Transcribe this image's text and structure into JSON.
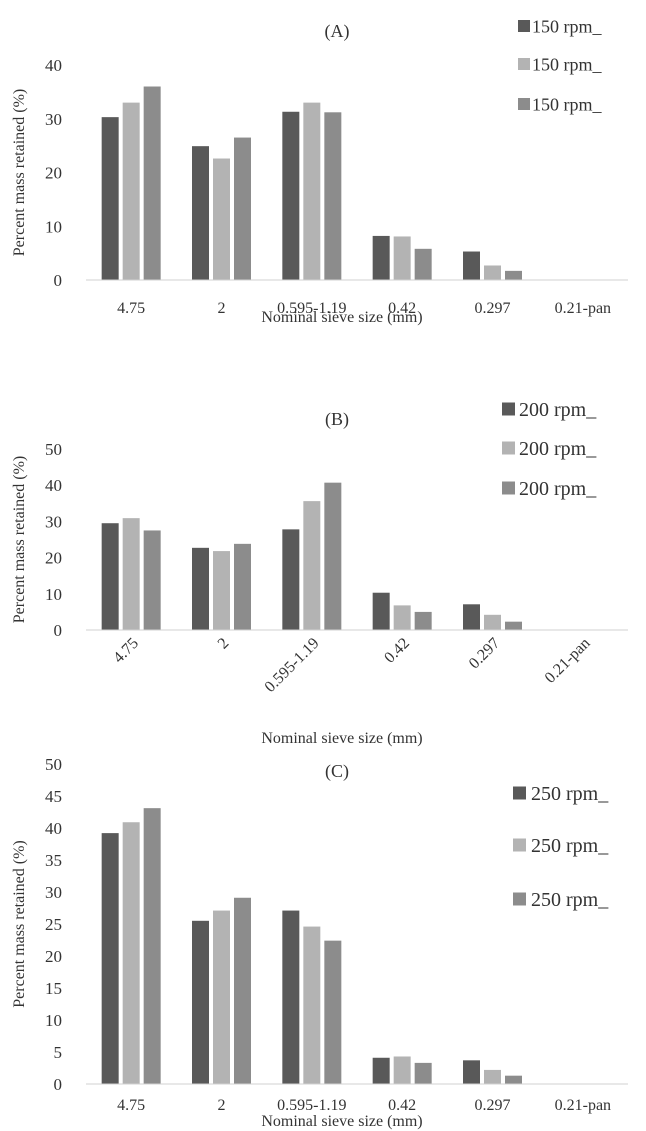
{
  "chart_data": [
    {
      "type": "bar",
      "title": "(A)",
      "xlabel": "Nominal sieve size (mm)",
      "ylabel": "Percent mass retained (%)",
      "categories": [
        "4.75",
        "2",
        "0.595-1.19",
        "0.42",
        "0.297",
        "0.21-pan"
      ],
      "ylim": [
        0,
        40
      ],
      "yticks": [
        "0",
        "10",
        "20",
        "30",
        "40"
      ],
      "grid": false,
      "legend_position": "top-right",
      "series": [
        {
          "name": "150 rpm_",
          "color": "#595959",
          "values": [
            30.3,
            24.9,
            31.3,
            8.2,
            5.3,
            0
          ]
        },
        {
          "name": "150 rpm_",
          "color": "#b3b3b3",
          "values": [
            33.0,
            22.6,
            33.0,
            8.1,
            2.7,
            0
          ]
        },
        {
          "name": "150 rpm_",
          "color": "#8c8c8c",
          "values": [
            36.0,
            26.5,
            31.2,
            5.8,
            1.7,
            0
          ]
        }
      ]
    },
    {
      "type": "bar",
      "title": "(B)",
      "xlabel": "Nominal sieve size (mm)",
      "ylabel": "Percent mass retained (%)",
      "categories": [
        "4.75",
        "2",
        "0.595-1.19",
        "0.42",
        "0.297",
        "0.21-pan"
      ],
      "ylim": [
        0,
        50
      ],
      "yticks": [
        "0",
        "10",
        "20",
        "30",
        "40",
        "50"
      ],
      "grid": false,
      "legend_position": "top-right",
      "series": [
        {
          "name": "200 rpm_",
          "color": "#595959",
          "values": [
            29.5,
            22.7,
            27.8,
            10.3,
            7.1,
            0
          ]
        },
        {
          "name": "200 rpm_",
          "color": "#b3b3b3",
          "values": [
            30.9,
            21.8,
            35.6,
            6.8,
            4.2,
            0
          ]
        },
        {
          "name": "200 rpm_",
          "color": "#8c8c8c",
          "values": [
            27.5,
            23.8,
            40.7,
            5.0,
            2.3,
            0
          ]
        }
      ]
    },
    {
      "type": "bar",
      "title": "(C)",
      "xlabel": "Nominal sieve size (mm)",
      "ylabel": "Percent mass retained (%)",
      "categories": [
        "4.75",
        "2",
        "0.595-1.19",
        "0.42",
        "0.297",
        "0.21-pan"
      ],
      "ylim": [
        0,
        50
      ],
      "yticks": [
        "0",
        "5",
        "10",
        "15",
        "20",
        "25",
        "30",
        "35",
        "40",
        "45",
        "50"
      ],
      "grid": false,
      "legend_position": "top-right",
      "series": [
        {
          "name": "250 rpm_",
          "color": "#595959",
          "values": [
            39.2,
            25.5,
            27.1,
            4.1,
            3.7,
            0
          ]
        },
        {
          "name": "250 rpm_",
          "color": "#b3b3b3",
          "values": [
            40.9,
            27.1,
            24.6,
            4.3,
            2.2,
            0
          ]
        },
        {
          "name": "250 rpm_",
          "color": "#8c8c8c",
          "values": [
            43.1,
            29.1,
            22.4,
            3.3,
            1.3,
            0
          ]
        }
      ]
    }
  ]
}
